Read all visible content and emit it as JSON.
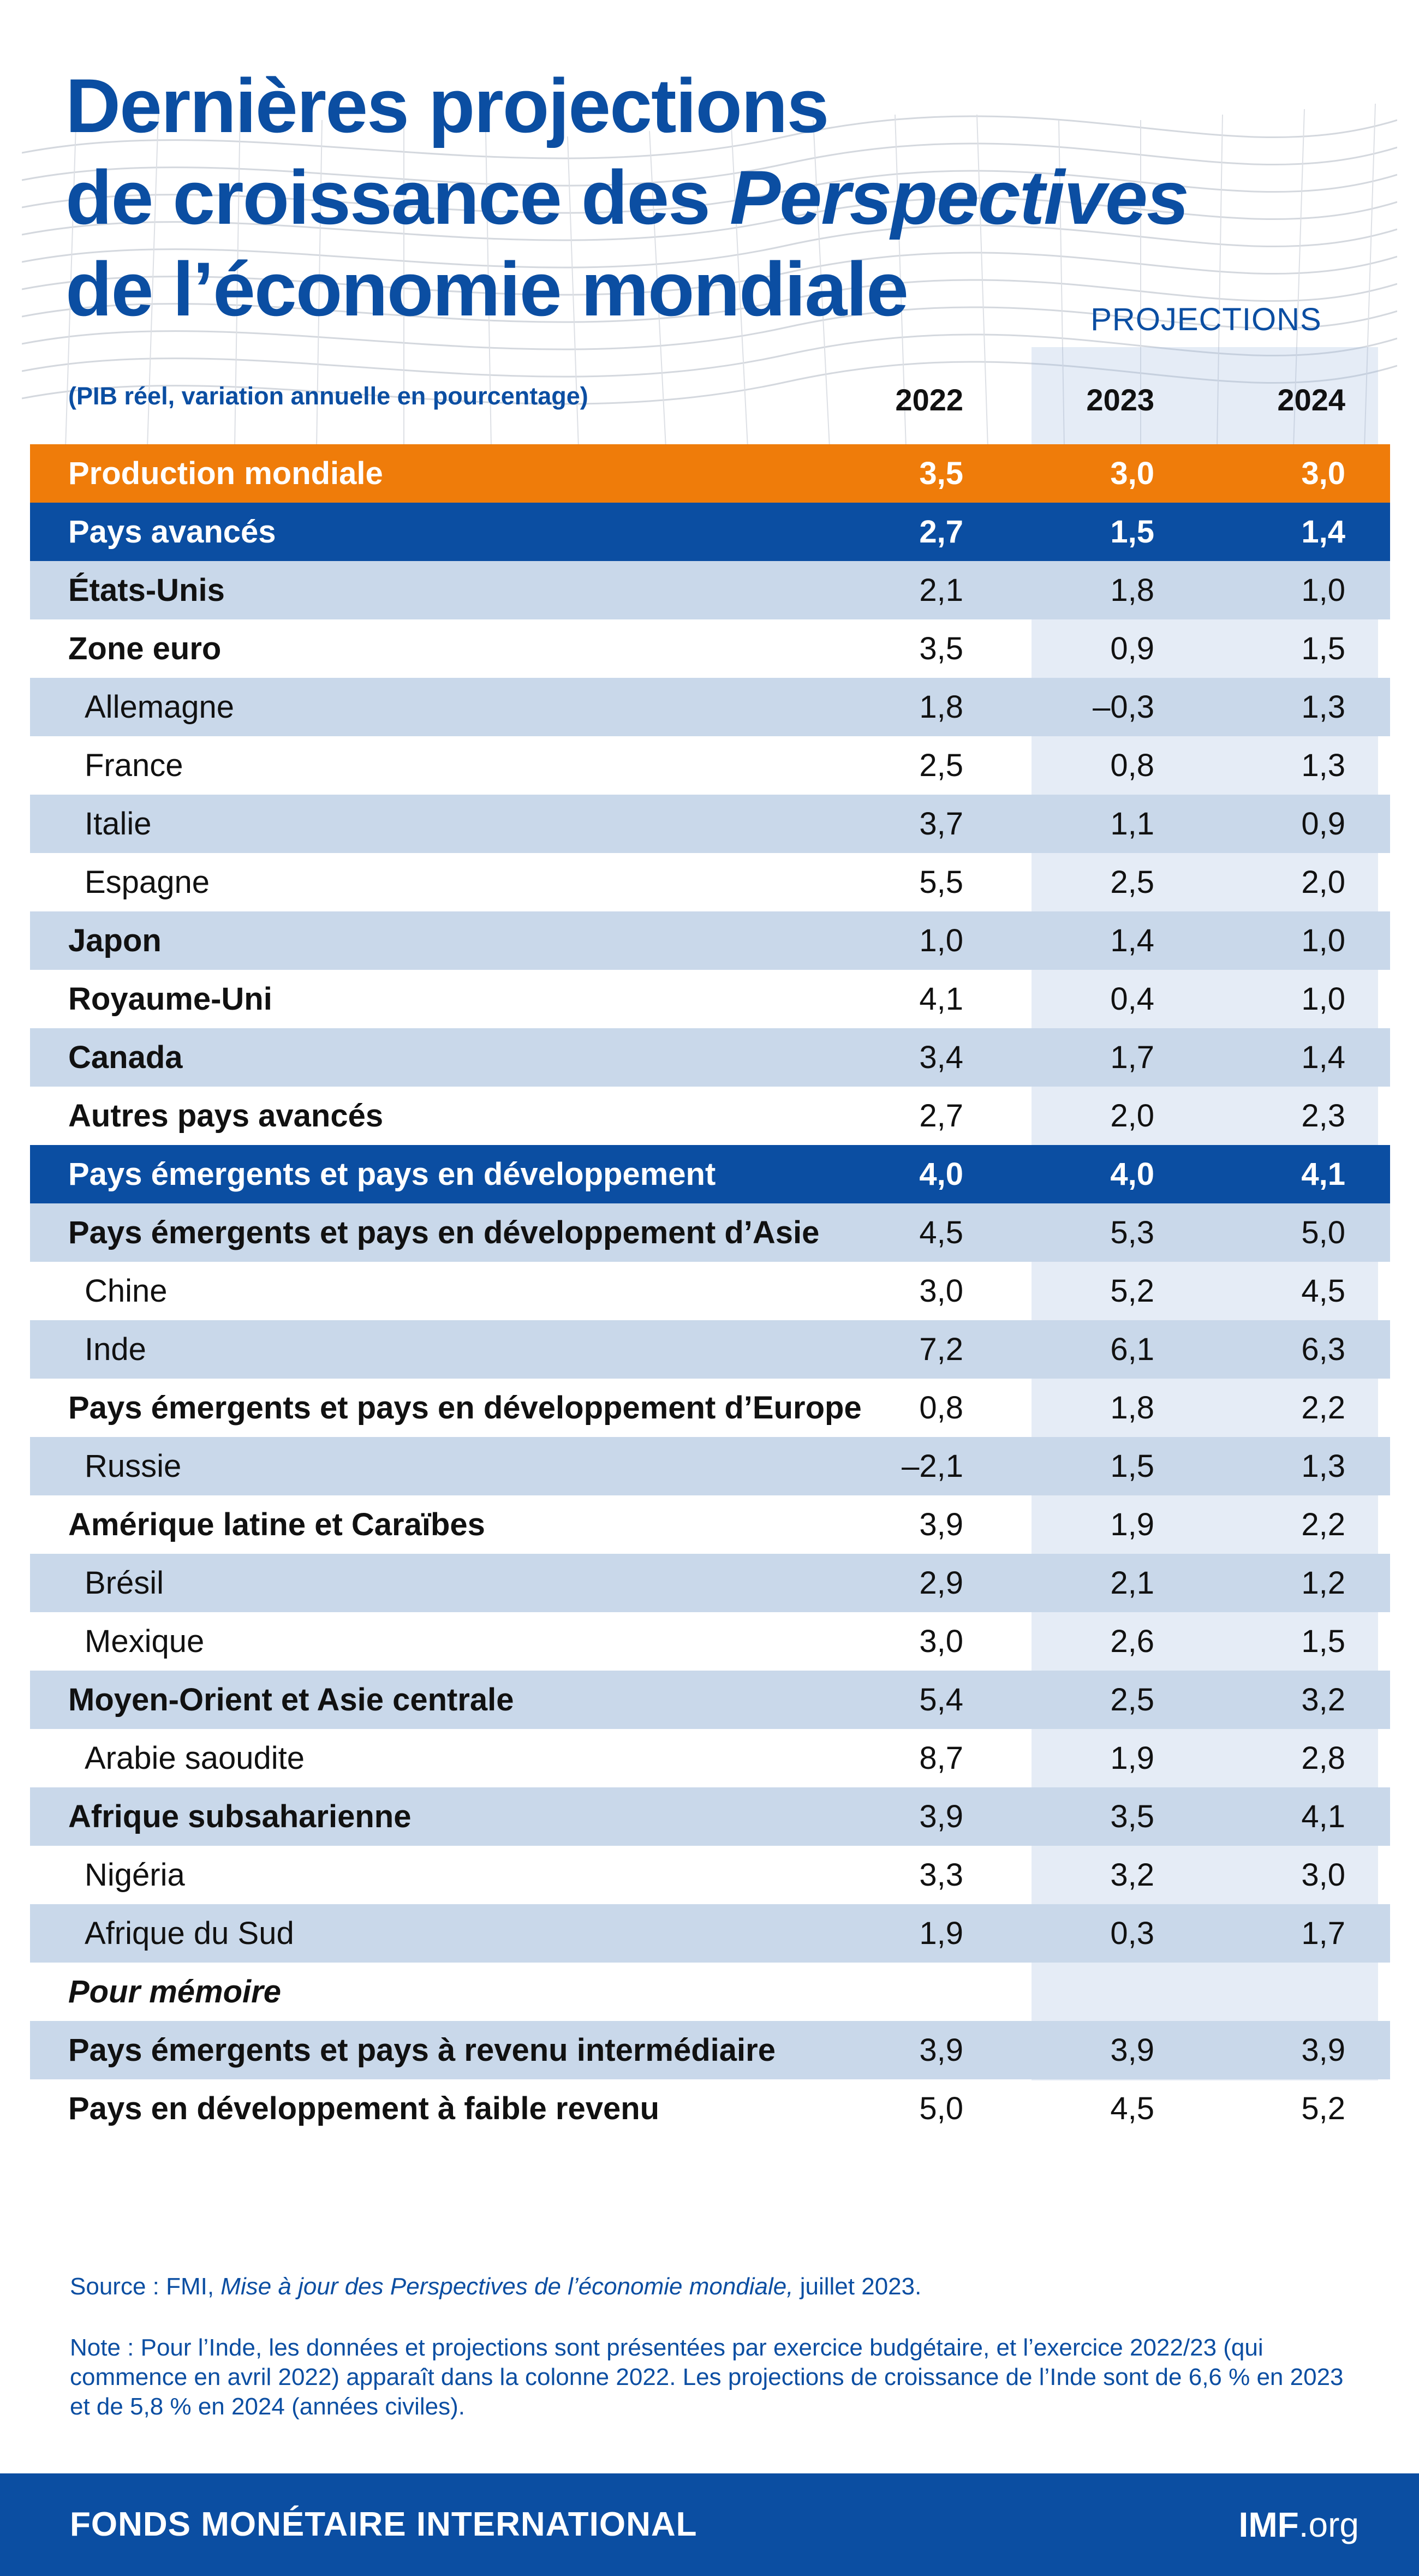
{
  "header": {
    "title_line1": "Dernières projections",
    "title_line2_a": "de croissance des ",
    "title_line2_b": "Perspectives",
    "title_line3": "de l’économie mondiale",
    "subtitle": "(PIB réel, variation annuelle en pourcentage)",
    "projections_label": "PROJECTIONS"
  },
  "colors": {
    "brand_blue": "#0b4ea2",
    "orange": "#ef7c0a",
    "light_row": "#c9d8ea",
    "projection_band": "#a3badf"
  },
  "chart_data": {
    "type": "table",
    "columns": [
      "2022",
      "2023",
      "2024"
    ],
    "rows": [
      {
        "label": "Production mondiale",
        "values": [
          "3,5",
          "3,0",
          "3,0"
        ],
        "style": "orange",
        "indent": false
      },
      {
        "label": "Pays avancés",
        "values": [
          "2,7",
          "1,5",
          "1,4"
        ],
        "style": "blue",
        "indent": false
      },
      {
        "label": "États-Unis",
        "values": [
          "2,1",
          "1,8",
          "1,0"
        ],
        "style": "light",
        "indent": false
      },
      {
        "label": "Zone euro",
        "values": [
          "3,5",
          "0,9",
          "1,5"
        ],
        "style": "white",
        "indent": false
      },
      {
        "label": "Allemagne",
        "values": [
          "1,8",
          "–0,3",
          "1,3"
        ],
        "style": "light",
        "indent": true
      },
      {
        "label": "France",
        "values": [
          "2,5",
          "0,8",
          "1,3"
        ],
        "style": "white",
        "indent": true
      },
      {
        "label": "Italie",
        "values": [
          "3,7",
          "1,1",
          "0,9"
        ],
        "style": "light",
        "indent": true
      },
      {
        "label": "Espagne",
        "values": [
          "5,5",
          "2,5",
          "2,0"
        ],
        "style": "white",
        "indent": true
      },
      {
        "label": "Japon",
        "values": [
          "1,0",
          "1,4",
          "1,0"
        ],
        "style": "light",
        "indent": false
      },
      {
        "label": "Royaume-Uni",
        "values": [
          "4,1",
          "0,4",
          "1,0"
        ],
        "style": "white",
        "indent": false
      },
      {
        "label": "Canada",
        "values": [
          "3,4",
          "1,7",
          "1,4"
        ],
        "style": "light",
        "indent": false
      },
      {
        "label": "Autres pays avancés",
        "values": [
          "2,7",
          "2,0",
          "2,3"
        ],
        "style": "white",
        "indent": false
      },
      {
        "label": "Pays émergents et pays en développement",
        "values": [
          "4,0",
          "4,0",
          "4,1"
        ],
        "style": "blue",
        "indent": false
      },
      {
        "label": "Pays émergents et pays en développement d’Asie",
        "values": [
          "4,5",
          "5,3",
          "5,0"
        ],
        "style": "light",
        "indent": false
      },
      {
        "label": "Chine",
        "values": [
          "3,0",
          "5,2",
          "4,5"
        ],
        "style": "white",
        "indent": true
      },
      {
        "label": "Inde",
        "values": [
          "7,2",
          "6,1",
          "6,3"
        ],
        "style": "light",
        "indent": true
      },
      {
        "label": "Pays émergents et pays en développement d’Europe",
        "values": [
          "0,8",
          "1,8",
          "2,2"
        ],
        "style": "white",
        "indent": false
      },
      {
        "label": "Russie",
        "values": [
          "–2,1",
          "1,5",
          "1,3"
        ],
        "style": "light",
        "indent": true
      },
      {
        "label": "Amérique latine et Caraïbes",
        "values": [
          "3,9",
          "1,9",
          "2,2"
        ],
        "style": "white",
        "indent": false
      },
      {
        "label": "Brésil",
        "values": [
          "2,9",
          "2,1",
          "1,2"
        ],
        "style": "light",
        "indent": true
      },
      {
        "label": "Mexique",
        "values": [
          "3,0",
          "2,6",
          "1,5"
        ],
        "style": "white",
        "indent": true
      },
      {
        "label": "Moyen-Orient et Asie centrale",
        "values": [
          "5,4",
          "2,5",
          "3,2"
        ],
        "style": "light",
        "indent": false
      },
      {
        "label": "Arabie saoudite",
        "values": [
          "8,7",
          "1,9",
          "2,8"
        ],
        "style": "white",
        "indent": true
      },
      {
        "label": "Afrique subsaharienne",
        "values": [
          "3,9",
          "3,5",
          "4,1"
        ],
        "style": "light",
        "indent": false
      },
      {
        "label": "Nigéria",
        "values": [
          "3,3",
          "3,2",
          "3,0"
        ],
        "style": "white",
        "indent": true
      },
      {
        "label": "Afrique du Sud",
        "values": [
          "1,9",
          "0,3",
          "1,7"
        ],
        "style": "light",
        "indent": true
      },
      {
        "label": "Pour mémoire",
        "values": [
          "",
          "",
          ""
        ],
        "style": "white",
        "indent": false,
        "italic": true
      },
      {
        "label": "Pays émergents et pays à revenu intermédiaire",
        "values": [
          "3,9",
          "3,9",
          "3,9"
        ],
        "style": "light",
        "indent": false
      },
      {
        "label": "Pays en développement à faible revenu",
        "values": [
          "5,0",
          "4,5",
          "5,2"
        ],
        "style": "white",
        "indent": false
      }
    ]
  },
  "notes": {
    "source_prefix": "Source : FMI, ",
    "source_title": "Mise à jour des Perspectives de l’économie mondiale,",
    "source_suffix": " juillet 2023.",
    "note_text": "Note : Pour l’Inde, les données et projections sont présentées par exercice budgétaire, et l’exercice 2022/23 (qui commence en avril 2022) apparaît dans la colonne 2022. Les projections de croissance de l’Inde sont de 6,6 % en 2023 et de 5,8 % en 2024 (années civiles)."
  },
  "footer": {
    "org_name": "FONDS MONÉTAIRE INTERNATIONAL",
    "site_bold": "IMF",
    "site_rest": ".org"
  }
}
